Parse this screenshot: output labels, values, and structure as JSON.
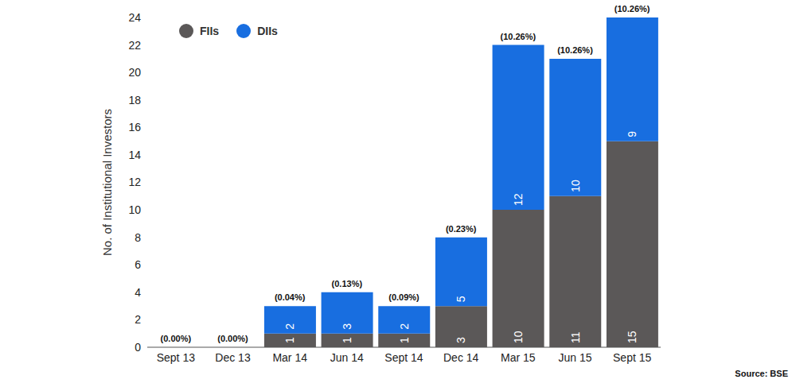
{
  "chart_data": {
    "type": "bar",
    "stacked": true,
    "data_labels": true,
    "categories": [
      "Sept 13",
      "Dec 13",
      "Mar 14",
      "Jun 14",
      "Sept 14",
      "Dec 14",
      "Mar 15",
      "Jun 15",
      "Sept 15"
    ],
    "series": [
      {
        "name": "FIIs",
        "color": "#5b5858",
        "values": [
          0,
          0,
          1,
          1,
          1,
          3,
          10,
          11,
          15
        ]
      },
      {
        "name": "DIIs",
        "color": "#186ee0",
        "values": [
          0,
          0,
          2,
          3,
          2,
          5,
          12,
          10,
          9
        ]
      }
    ],
    "ylabel": "No. of Institutional Investors",
    "ylim": [
      0,
      24
    ],
    "yticks": [
      0,
      2,
      4,
      6,
      8,
      10,
      12,
      14,
      16,
      18,
      20,
      22,
      24
    ],
    "grid": false,
    "legend": "upper left",
    "holding_pct": [
      0,
      0,
      0.04,
      0.13,
      0.09,
      0.23,
      10.26,
      10.26,
      10.26
    ],
    "holding_pct_labels": [
      "(0.00%)",
      "(0.00%)",
      "(0.04%)",
      "(0.13%)",
      "(0.09%)",
      "(0.23%)",
      "(10.26%)",
      "(10.26%)",
      "(10.26%)"
    ],
    "source": "Source: BSE"
  }
}
